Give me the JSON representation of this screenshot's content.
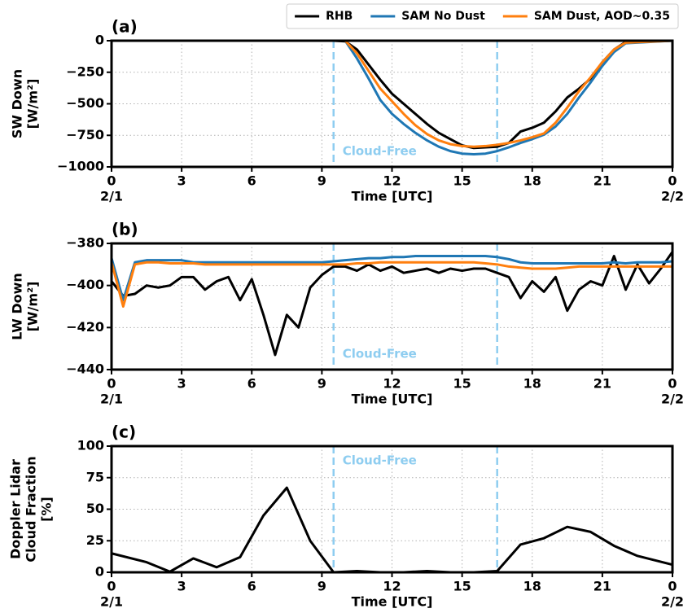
{
  "chart_data": [
    {
      "type": "line",
      "panel_label": "(a)",
      "xlabel": "Time [UTC]",
      "ylabel": [
        "SW Down",
        "[W/m²]"
      ],
      "x": [
        0,
        6,
        9,
        9.5,
        10,
        10.5,
        11,
        11.5,
        12,
        12.5,
        13,
        13.5,
        14,
        14.5,
        15,
        15.5,
        16,
        16.5,
        17,
        17.5,
        18,
        18.5,
        19,
        19.5,
        20,
        20.5,
        21,
        21.5,
        22,
        24
      ],
      "series": [
        {
          "name": "RHB",
          "color": "#000000",
          "values": [
            0,
            0,
            0,
            0,
            -5,
            -70,
            -190,
            -310,
            -420,
            -500,
            -580,
            -660,
            -730,
            -780,
            -830,
            -850,
            -845,
            -840,
            -810,
            -720,
            -690,
            -650,
            -560,
            -450,
            -380,
            -300,
            -170,
            -70,
            -10,
            0
          ]
        },
        {
          "name": "SAM No Dust",
          "color": "#1f77b4",
          "values": [
            0,
            0,
            0,
            0,
            0,
            -140,
            -300,
            -470,
            -580,
            -660,
            -730,
            -790,
            -840,
            -875,
            -895,
            -900,
            -895,
            -875,
            -845,
            -810,
            -780,
            -745,
            -680,
            -580,
            -450,
            -330,
            -200,
            -90,
            -20,
            0
          ]
        },
        {
          "name": "SAM Dust, AOD~0.35",
          "color": "#ff7f0e",
          "values": [
            0,
            0,
            0,
            0,
            0,
            -100,
            -240,
            -380,
            -480,
            -580,
            -670,
            -740,
            -790,
            -820,
            -835,
            -840,
            -835,
            -825,
            -810,
            -790,
            -765,
            -735,
            -650,
            -530,
            -400,
            -290,
            -170,
            -70,
            -15,
            0
          ]
        }
      ],
      "legend": "top-right",
      "xlim": [
        0,
        24
      ],
      "xticks": [
        0,
        3,
        6,
        9,
        12,
        15,
        18,
        21,
        {
          "value": 24,
          "label": "0"
        }
      ],
      "date_labels": [
        {
          "value": 0,
          "label": "2/1"
        },
        {
          "value": 24,
          "label": "2/2"
        }
      ],
      "ylim": [
        -1000,
        0
      ],
      "yticks": [
        {
          "value": -1000,
          "label": "−1000"
        },
        {
          "value": -750,
          "label": "−750"
        },
        {
          "value": -500,
          "label": "−500"
        },
        {
          "value": -250,
          "label": "−250"
        },
        0
      ],
      "grid": true,
      "vlines": [
        9.5,
        16.5
      ],
      "vline_color": "#8ecdf0",
      "annotation": "Cloud-Free",
      "annotation_loc": "bottom"
    },
    {
      "type": "line",
      "panel_label": "(b)",
      "xlabel": "Time [UTC]",
      "ylabel": [
        "LW Down",
        "[W/m²]"
      ],
      "x": [
        0,
        0.5,
        1,
        1.5,
        2,
        2.5,
        3,
        3.5,
        4,
        4.5,
        5,
        5.5,
        6,
        6.5,
        7,
        7.5,
        8,
        8.5,
        9,
        9.5,
        10,
        10.5,
        11,
        11.5,
        12,
        12.5,
        13,
        13.5,
        14,
        14.5,
        15,
        15.5,
        16,
        16.5,
        17,
        17.5,
        18,
        18.5,
        19,
        19.5,
        20,
        20.5,
        21,
        21.5,
        22,
        22.5,
        23,
        23.5,
        24
      ],
      "series": [
        {
          "color": "#000000",
          "values": [
            -398,
            -405,
            -404,
            -400,
            -401,
            -400,
            -396,
            -396,
            -402,
            -398,
            -396,
            -407,
            -397,
            -414,
            -433,
            -414,
            -420,
            -401,
            -395,
            -391,
            -391,
            -393,
            -390,
            -393,
            -391,
            -394,
            -393,
            -392,
            -394,
            -392,
            -393,
            -392,
            -392,
            -394,
            -396,
            -406,
            -398,
            -403,
            -396,
            -412,
            -402,
            -398,
            -400,
            -386,
            -402,
            -390,
            -399,
            -392,
            -384
          ]
        },
        {
          "color": "#1f77b4",
          "values": [
            -387,
            -407,
            -389,
            -388,
            -388,
            -388,
            -388,
            -389,
            -389,
            -389,
            -389,
            -389,
            -389,
            -389,
            -389,
            -389,
            -389,
            -389,
            -389,
            -388.5,
            -388,
            -387.5,
            -387,
            -387,
            -386.5,
            -386.5,
            -386,
            -386,
            -386,
            -386,
            -386,
            -386,
            -386,
            -386.5,
            -387.5,
            -389,
            -389.5,
            -389.5,
            -389.5,
            -389.5,
            -389.5,
            -389.5,
            -389.5,
            -389,
            -389.5,
            -389,
            -389,
            -389,
            -388.5
          ]
        },
        {
          "color": "#ff7f0e",
          "values": [
            -389,
            -410,
            -390,
            -389,
            -389,
            -389.5,
            -389.5,
            -389.5,
            -390,
            -390,
            -390,
            -390,
            -390,
            -390,
            -390,
            -390,
            -390,
            -390,
            -390,
            -390,
            -390,
            -389.5,
            -389.5,
            -389,
            -389,
            -389,
            -389,
            -389,
            -389,
            -389,
            -389,
            -389,
            -389.5,
            -390,
            -391,
            -391.5,
            -392,
            -392,
            -392,
            -391.5,
            -391,
            -391,
            -391,
            -391,
            -391,
            -391,
            -391,
            -391,
            -391
          ]
        }
      ],
      "xlim": [
        0,
        24
      ],
      "xticks": [
        0,
        3,
        6,
        9,
        12,
        15,
        18,
        21,
        {
          "value": 24,
          "label": "0"
        }
      ],
      "date_labels": [
        {
          "value": 0,
          "label": "2/1"
        },
        {
          "value": 24,
          "label": "2/2"
        }
      ],
      "ylim": [
        -440,
        -380
      ],
      "yticks": [
        {
          "value": -440,
          "label": "−440"
        },
        {
          "value": -420,
          "label": "−420"
        },
        {
          "value": -400,
          "label": "−400"
        },
        {
          "value": -380,
          "label": "−380"
        }
      ],
      "grid": true,
      "vlines": [
        9.5,
        16.5
      ],
      "vline_color": "#8ecdf0",
      "annotation": "Cloud-Free",
      "annotation_loc": "bottom"
    },
    {
      "type": "line",
      "panel_label": "(c)",
      "xlabel": "Time [UTC]",
      "ylabel": [
        "Doppler Lidar",
        "Cloud Fraction",
        "[%]"
      ],
      "x": [
        0,
        1.5,
        2.5,
        3.5,
        4.5,
        5.5,
        6.5,
        7.5,
        8.5,
        9.5,
        10.5,
        11.5,
        12.5,
        13.5,
        14.5,
        15.5,
        16.5,
        17.5,
        18.5,
        19.5,
        20.5,
        21.5,
        22.5,
        24
      ],
      "values": [
        15,
        8,
        0.5,
        11,
        4,
        12,
        45,
        67,
        25,
        0,
        1,
        0,
        0,
        1,
        0,
        0,
        1,
        22,
        27,
        36,
        32,
        21,
        13,
        6
      ],
      "color": "#000000",
      "xlim": [
        0,
        24
      ],
      "xticks": [
        0,
        3,
        6,
        9,
        12,
        15,
        18,
        21,
        {
          "value": 24,
          "label": "0"
        }
      ],
      "date_labels": [
        {
          "value": 0,
          "label": "2/1"
        },
        {
          "value": 24,
          "label": "2/2"
        }
      ],
      "ylim": [
        0,
        100
      ],
      "yticks": [
        0,
        25,
        50,
        75,
        100
      ],
      "grid": true,
      "vlines": [
        9.5,
        16.5
      ],
      "vline_color": "#8ecdf0",
      "annotation": "Cloud-Free",
      "annotation_loc": "top"
    }
  ]
}
